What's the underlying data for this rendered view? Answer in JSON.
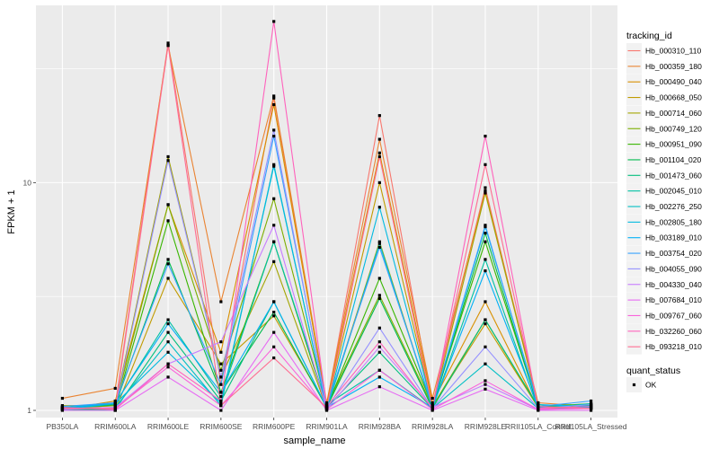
{
  "chart_data": {
    "type": "line",
    "xlabel": "sample_name",
    "ylabel": "FPKM + 1",
    "y_scale": "log",
    "ylim": [
      0.93,
      60
    ],
    "y_ticks": [
      1,
      10
    ],
    "y_tick_labels": [
      "1",
      "10"
    ],
    "grid": true,
    "legend_placement": "right",
    "categories": [
      "PB350LA",
      "RRIM600LA",
      "RRIM600LE",
      "RRIM600SE",
      "RRIM600PE",
      "RRIM901LA",
      "RRIM928BA",
      "RRIM928LA",
      "RRIM928LE",
      "RRII105LA_Control",
      "RRII105LA_Stressed"
    ],
    "legend_title": "tracking_id",
    "series": [
      {
        "name": "Hb_000310_110",
        "color": "#F8766D",
        "values": [
          1.02,
          1.05,
          41,
          1.3,
          23.5,
          1.06,
          19.7,
          1.06,
          9.5,
          1.04,
          1.05
        ]
      },
      {
        "name": "Hb_000359_180",
        "color": "#EA8331",
        "values": [
          1.13,
          1.25,
          40,
          3.0,
          24.0,
          1.08,
          15.5,
          1.13,
          9.2,
          1.08,
          1.04
        ]
      },
      {
        "name": "Hb_000490_040",
        "color": "#D89000",
        "values": [
          1.01,
          1.1,
          8.0,
          1.8,
          22.0,
          1.06,
          13.5,
          1.08,
          3.0,
          1.02,
          1.03
        ]
      },
      {
        "name": "Hb_000668_050",
        "color": "#C09B00",
        "values": [
          1.03,
          1.0,
          3.8,
          1.6,
          2.6,
          1.04,
          10.0,
          1.04,
          2.4,
          1.03,
          1.05
        ]
      },
      {
        "name": "Hb_000714_060",
        "color": "#A3A500",
        "values": [
          1.05,
          1.05,
          13.0,
          1.4,
          4.5,
          1.02,
          5.5,
          1.02,
          9.0,
          1.06,
          1.02
        ]
      },
      {
        "name": "Hb_000749_120",
        "color": "#7CAE00",
        "values": [
          1.02,
          1.05,
          8.0,
          1.5,
          8.5,
          1.05,
          3.2,
          1.04,
          2.5,
          1.03,
          1.03
        ]
      },
      {
        "name": "Hb_000951_090",
        "color": "#39B600",
        "values": [
          1.02,
          1.02,
          6.8,
          1.2,
          5.5,
          1.03,
          3.8,
          1.05,
          5.5,
          1.04,
          1.07
        ]
      },
      {
        "name": "Hb_001104_020",
        "color": "#00BB4E",
        "values": [
          1.02,
          1.06,
          4.6,
          1.2,
          2.7,
          1.03,
          3.1,
          1.02,
          6.0,
          1.02,
          1.06
        ]
      },
      {
        "name": "Hb_001473_060",
        "color": "#00BF7D",
        "values": [
          1.01,
          1.01,
          2.2,
          1.1,
          3.0,
          1.03,
          1.8,
          1.02,
          2.5,
          1.04,
          1.05
        ]
      },
      {
        "name": "Hb_002045_010",
        "color": "#00C1A3",
        "values": [
          1.03,
          1.07,
          2.5,
          1.15,
          5.5,
          1.06,
          1.5,
          1.02,
          4.6,
          1.01,
          1.03
        ]
      },
      {
        "name": "Hb_002276_250",
        "color": "#00BFC4",
        "values": [
          1.01,
          1.03,
          2.0,
          1.05,
          12.0,
          1.01,
          5.4,
          1.02,
          1.6,
          1.02,
          1.07
        ]
      },
      {
        "name": "Hb_002805_180",
        "color": "#00BAE0",
        "values": [
          1.01,
          1.07,
          1.8,
          1.08,
          11.8,
          1.02,
          7.8,
          1.04,
          6.4,
          1.06,
          1.04
        ]
      },
      {
        "name": "Hb_003189_010",
        "color": "#00B0F6",
        "values": [
          1.02,
          1.08,
          2.4,
          1.2,
          3.0,
          1.03,
          1.4,
          1.03,
          4.1,
          1.03,
          1.03
        ]
      },
      {
        "name": "Hb_003754_020",
        "color": "#35A2FF",
        "values": [
          1.04,
          1.08,
          4.4,
          1.3,
          16.0,
          1.05,
          5.2,
          1.05,
          6.5,
          1.04,
          1.1
        ]
      },
      {
        "name": "Hb_004055_090",
        "color": "#9590FF",
        "values": [
          1.01,
          1.03,
          12.5,
          1.4,
          17.0,
          1.02,
          2.3,
          1.02,
          1.9,
          1.02,
          1.06
        ]
      },
      {
        "name": "Hb_004330_040",
        "color": "#C77CFF",
        "values": [
          1.02,
          1.03,
          1.6,
          2.0,
          6.5,
          1.01,
          1.9,
          1.03,
          1.3,
          1.01,
          1.02
        ]
      },
      {
        "name": "Hb_007684_010",
        "color": "#E76BF3",
        "values": [
          1.0,
          1.0,
          1.4,
          1.0,
          2.2,
          1.0,
          1.27,
          1.0,
          1.24,
          1.0,
          1.0
        ]
      },
      {
        "name": "Hb_009767_060",
        "color": "#FA62DB",
        "values": [
          1.02,
          1.02,
          1.55,
          1.05,
          1.9,
          1.01,
          1.5,
          1.01,
          1.35,
          1.01,
          1.02
        ]
      },
      {
        "name": "Hb_032260_060",
        "color": "#FF62BC",
        "values": [
          1.03,
          1.01,
          1.6,
          1.1,
          51,
          1.04,
          2.0,
          1.02,
          16.0,
          1.02,
          1.04
        ]
      },
      {
        "name": "Hb_093218_010",
        "color": "#FF6C91",
        "values": [
          1.02,
          1.02,
          40,
          1.05,
          1.7,
          1.03,
          13.0,
          1.03,
          12.0,
          1.04,
          1.02
        ]
      }
    ],
    "legend2_title": "quant_status",
    "legend2_items": [
      "OK"
    ]
  }
}
